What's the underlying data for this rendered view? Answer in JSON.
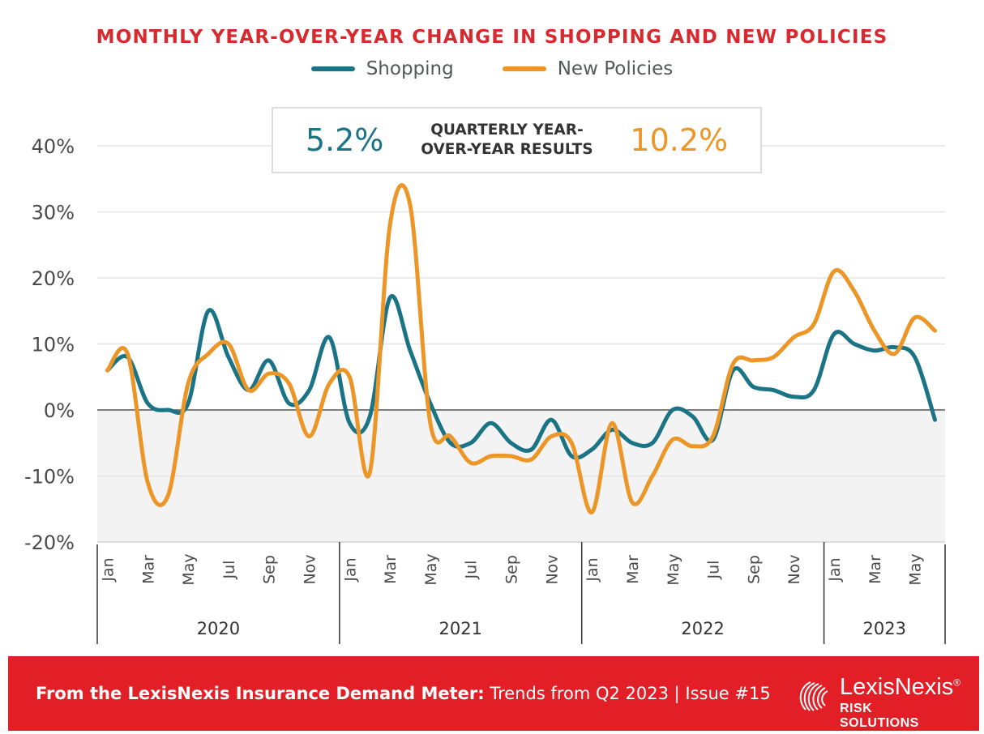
{
  "colors": {
    "shopping": "#1a7485",
    "new_policies": "#ec9628",
    "title": "#d72a2f",
    "footer": "#e21f26",
    "negative_band": "#f3f3f3"
  },
  "legend": {
    "shopping": "Shopping",
    "new_policies": "New Policies"
  },
  "results_box": {
    "shopping_pct": "5.2%",
    "label_line1": "QUARTERLY YEAR-",
    "label_line2": "OVER-YEAR RESULTS",
    "new_policies_pct": "10.2%"
  },
  "footer": {
    "bold_text": "From the LexisNexis Insurance Demand Meter:",
    "rest_text": " Trends from Q2 2023  |  Issue #15",
    "logo_name": "LexisNexis",
    "logo_reg": "®",
    "logo_sub": "RISK SOLUTIONS",
    "logo_icon": "lexisnexis-knot-icon"
  },
  "chart_data": {
    "type": "line",
    "title": "MONTHLY YEAR-OVER-YEAR CHANGE IN SHOPPING AND NEW POLICIES",
    "x": [
      "Jan 2020",
      "Feb 2020",
      "Mar 2020",
      "Apr 2020",
      "May 2020",
      "Jun 2020",
      "Jul 2020",
      "Aug 2020",
      "Sep 2020",
      "Oct 2020",
      "Nov 2020",
      "Dec 2020",
      "Jan 2021",
      "Feb 2021",
      "Mar 2021",
      "Apr 2021",
      "May 2021",
      "Jun 2021",
      "Jul 2021",
      "Aug 2021",
      "Sep 2021",
      "Oct 2021",
      "Nov 2021",
      "Dec 2021",
      "Jan 2022",
      "Feb 2022",
      "Mar 2022",
      "Apr 2022",
      "May 2022",
      "Jun 2022",
      "Jul 2022",
      "Aug 2022",
      "Sep 2022",
      "Oct 2022",
      "Nov 2022",
      "Dec 2022",
      "Jan 2023",
      "Feb 2023",
      "Mar 2023",
      "Apr 2023",
      "May 2023",
      "Jun 2023"
    ],
    "tick_labels": [
      "Jan",
      "Mar",
      "May",
      "Jul",
      "Sep",
      "Nov",
      "Jan",
      "Mar",
      "May",
      "Jul",
      "Sep",
      "Nov",
      "Jan",
      "Mar",
      "May",
      "Jul",
      "Sep",
      "Nov",
      "Jan",
      "Mar",
      "May"
    ],
    "groups": [
      {
        "label": "2020",
        "months": 12
      },
      {
        "label": "2021",
        "months": 12
      },
      {
        "label": "2022",
        "months": 12
      },
      {
        "label": "2023",
        "months": 6
      }
    ],
    "series": [
      {
        "name": "Shopping",
        "values": [
          6,
          8,
          1,
          0,
          1,
          15,
          8,
          3,
          7.5,
          1,
          3,
          11,
          -2,
          -1,
          17,
          9,
          1,
          -5,
          -5,
          -2,
          -5,
          -6,
          -1.5,
          -7,
          -6,
          -3,
          -5,
          -5,
          0,
          -1,
          -4.5,
          6,
          3.5,
          3,
          2,
          3,
          11.5,
          10,
          9,
          9.5,
          8,
          -1.5
        ]
      },
      {
        "name": "New Policies",
        "values": [
          6,
          8.5,
          -11,
          -13,
          4,
          8.5,
          10,
          3,
          5.5,
          4,
          -4,
          4,
          5,
          -9.5,
          28,
          31,
          -2,
          -4,
          -8,
          -7,
          -7,
          -7.5,
          -4,
          -5,
          -15.5,
          -2,
          -14,
          -10,
          -4.5,
          -5.5,
          -4,
          7,
          7.5,
          8,
          11,
          13,
          21,
          18,
          12,
          8.5,
          14,
          12
        ]
      }
    ],
    "yticks": [
      "40%",
      "30%",
      "20%",
      "10%",
      "0%",
      "-10%",
      "-20%"
    ],
    "ylim": [
      -20,
      40
    ],
    "grid": true,
    "legend_position": "top-center"
  }
}
